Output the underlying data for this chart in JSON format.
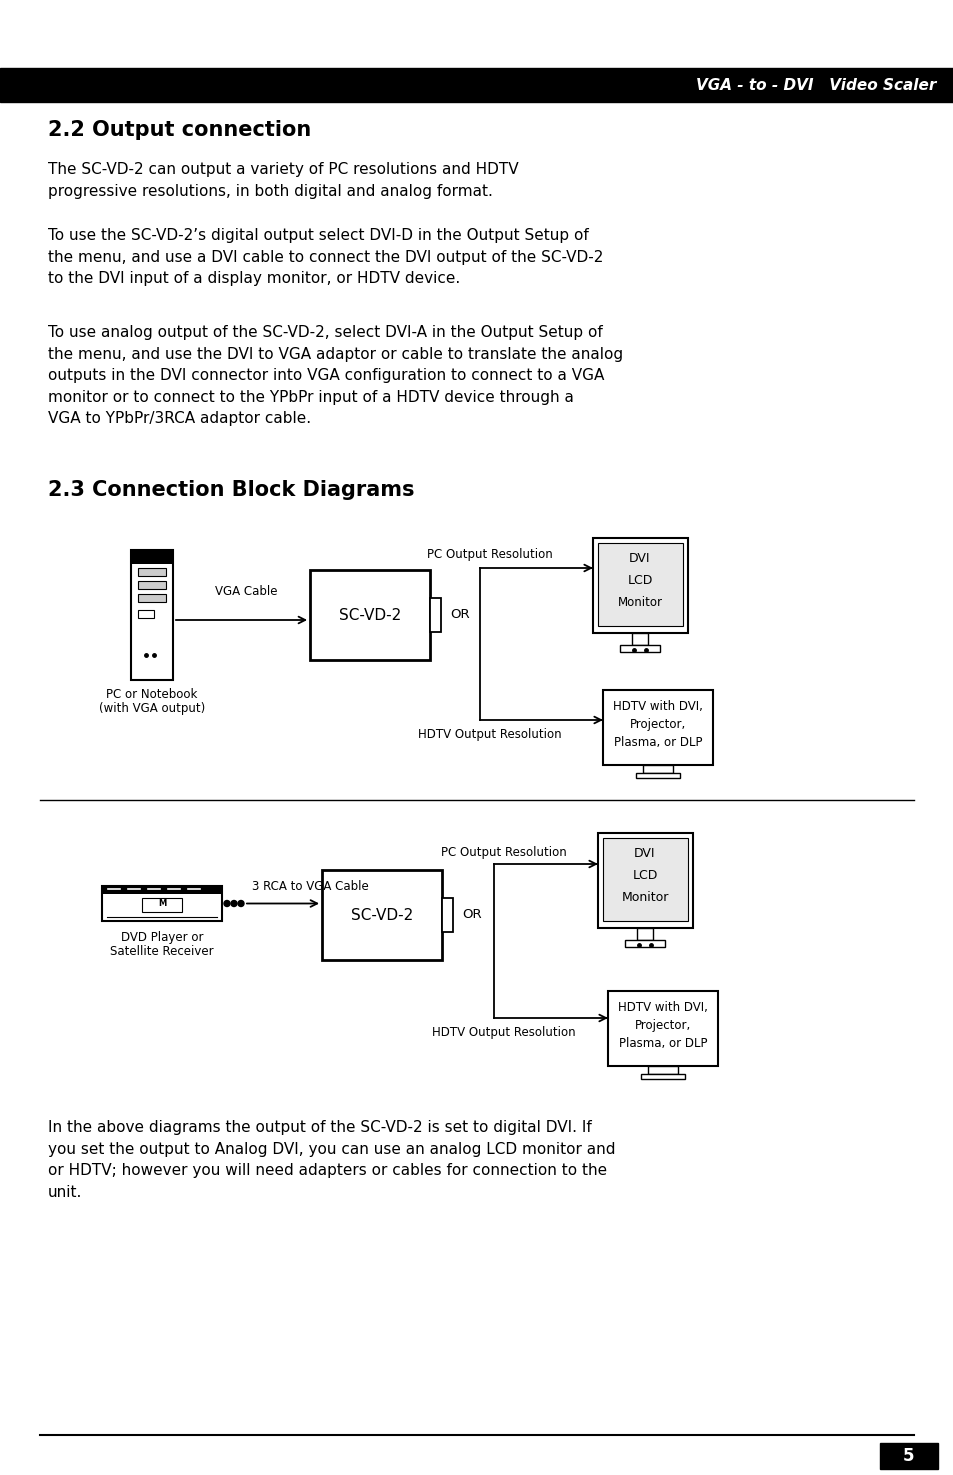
{
  "page_bg": "#ffffff",
  "header_bg": "#000000",
  "header_text": "VGA - to - DVI   Video Scaler",
  "header_text_color": "#ffffff",
  "section1_title": "2.2 Output connection",
  "para1": "The SC-VD-2 can output a variety of PC resolutions and HDTV\nprogressive resolutions, in both digital and analog format.",
  "para2": "To use the SC-VD-2’s digital output select DVI-D in the Output Setup of\nthe menu, and use a DVI cable to connect the DVI output of the SC-VD-2\nto the DVI input of a display monitor, or HDTV device.",
  "para3": "To use analog output of the SC-VD-2, select DVI-A in the Output Setup of\nthe menu, and use the DVI to VGA adaptor or cable to translate the analog\noutputs in the DVI connector into VGA configuration to connect to a VGA\nmonitor or to connect to the YPbPr input of a HDTV device through a\nVGA to YPbPr/3RCA adaptor cable.",
  "section2_title": "2.3 Connection Block Diagrams",
  "footer_text": "5",
  "diag1_scvd2_label": "SC-VD-2",
  "diag1_or_label": "OR",
  "diag1_pc_output": "PC Output Resolution",
  "diag1_hdtv_output": "HDTV Output Resolution",
  "diag1_vga_cable": "VGA Cable",
  "diag1_pc_label1": "PC or Notebook",
  "diag1_pc_label2": "(with VGA output)",
  "diag1_monitor_lines": [
    "DVI",
    "LCD",
    "Monitor"
  ],
  "diag1_hdtv_lines": [
    "HDTV with DVI,",
    "Projector,",
    "Plasma, or DLP"
  ],
  "diag2_scvd2_label": "SC-VD-2",
  "diag2_or_label": "OR",
  "diag2_pc_output": "PC Output Resolution",
  "diag2_hdtv_output": "HDTV Output Resolution",
  "diag2_cable": "3 RCA to VGA Cable",
  "diag2_device_label1": "DVD Player or",
  "diag2_device_label2": "Satellite Receiver",
  "diag2_monitor_lines": [
    "DVI",
    "LCD",
    "Monitor"
  ],
  "diag2_hdtv_lines": [
    "HDTV with DVI,",
    "Projector,",
    "Plasma, or DLP"
  ],
  "bottom_para": "In the above diagrams the output of the SC-VD-2 is set to digital DVI. If\nyou set the output to Analog DVI, you can use an analog LCD monitor and\nor HDTV; however you will need adapters or cables for connection to the\nunit."
}
